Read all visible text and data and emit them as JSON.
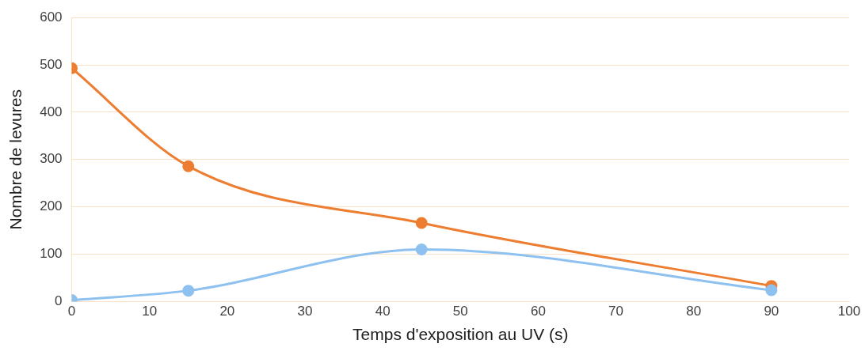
{
  "chart_data": {
    "type": "line",
    "xlabel": "Temps d'exposition au UV (s)",
    "ylabel": "Nombre de levures",
    "x": [
      0,
      15,
      45,
      90
    ],
    "series": [
      {
        "color": "#ed7d31",
        "values": [
          493,
          286,
          166,
          33
        ]
      },
      {
        "color": "#8ec1ef",
        "values": [
          3,
          23,
          110,
          24
        ]
      }
    ],
    "xlim": [
      0,
      100
    ],
    "xticks": [
      0,
      10,
      20,
      30,
      40,
      50,
      60,
      70,
      80,
      90,
      100
    ],
    "ylim": [
      0,
      600
    ],
    "yticks": [
      0,
      100,
      200,
      300,
      400,
      500,
      600
    ],
    "grid": "y",
    "legend": false,
    "marker": "circle",
    "line_style": "solid"
  }
}
